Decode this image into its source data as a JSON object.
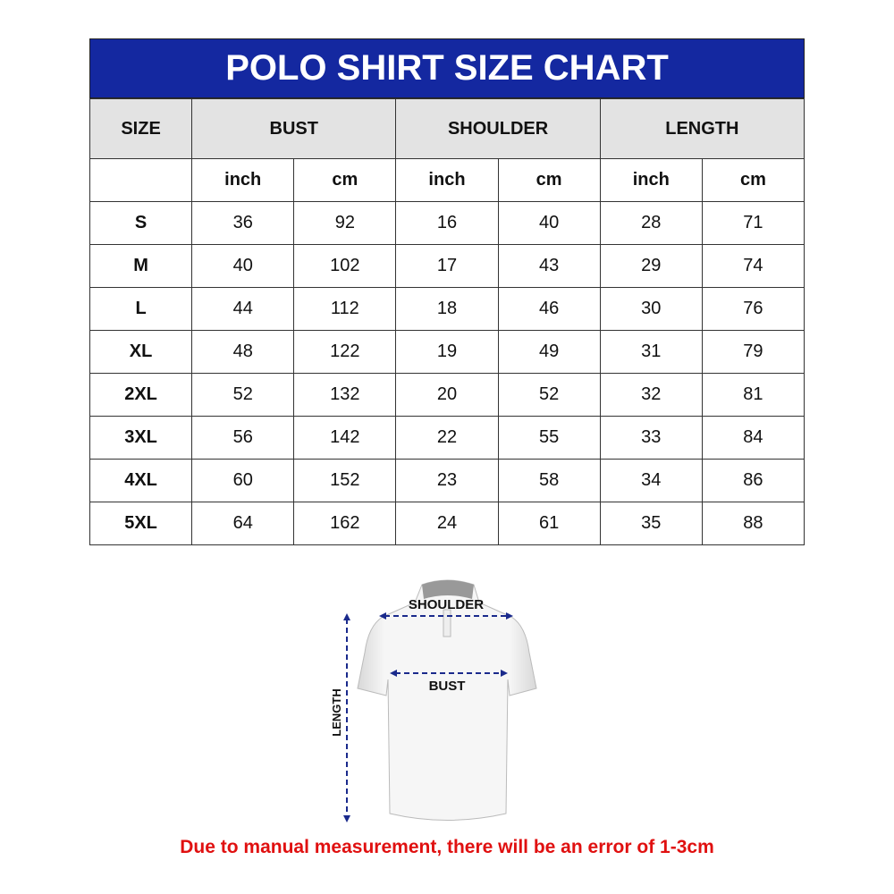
{
  "title": "POLO SHIRT SIZE CHART",
  "headers": {
    "size": "SIZE",
    "bust": "BUST",
    "shoulder": "SHOULDER",
    "length": "LENGTH"
  },
  "units": [
    "inch",
    "cm",
    "inch",
    "cm",
    "inch",
    "cm"
  ],
  "rows": [
    {
      "size": "S",
      "values": [
        "36",
        "92",
        "16",
        "40",
        "28",
        "71"
      ]
    },
    {
      "size": "M",
      "values": [
        "40",
        "102",
        "17",
        "43",
        "29",
        "74"
      ]
    },
    {
      "size": "L",
      "values": [
        "44",
        "112",
        "18",
        "46",
        "30",
        "76"
      ]
    },
    {
      "size": "XL",
      "values": [
        "48",
        "122",
        "19",
        "49",
        "31",
        "79"
      ]
    },
    {
      "size": "2XL",
      "values": [
        "52",
        "132",
        "20",
        "52",
        "32",
        "81"
      ]
    },
    {
      "size": "3XL",
      "values": [
        "56",
        "142",
        "22",
        "55",
        "33",
        "84"
      ]
    },
    {
      "size": "4XL",
      "values": [
        "60",
        "152",
        "23",
        "58",
        "34",
        "86"
      ]
    },
    {
      "size": "5XL",
      "values": [
        "64",
        "162",
        "24",
        "61",
        "35",
        "88"
      ]
    }
  ],
  "diagram": {
    "shoulder": "SHOULDER",
    "bust": "BUST",
    "length": "LENGTH"
  },
  "note": "Due to manual measurement, there will be an error of 1-3cm",
  "colors": {
    "title_bg": "#1428a0",
    "header_bg": "#e3e3e3",
    "note": "#e01010",
    "arrows": "#1a2a8c"
  }
}
